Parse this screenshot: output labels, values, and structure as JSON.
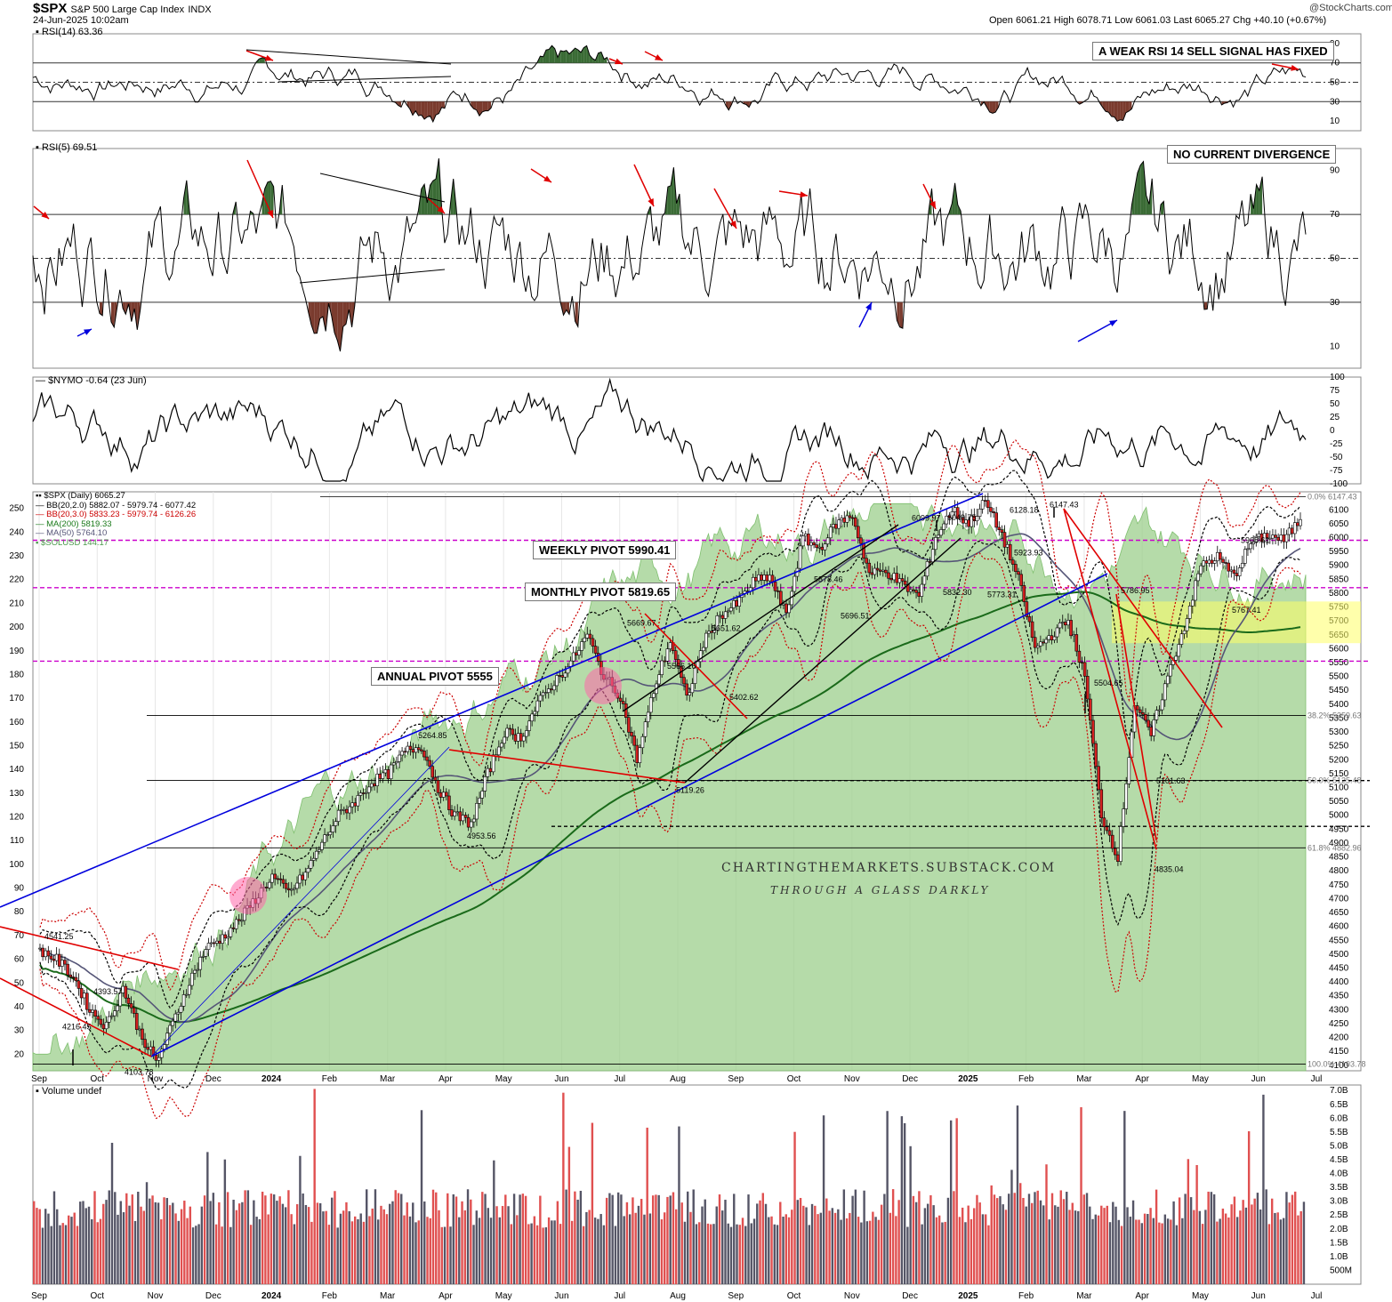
{
  "header": {
    "symbol": "$SPX",
    "name": "S&P 500 Large Cap Index",
    "exchange": "INDX",
    "timestamp": "24-Jun-2025 10:02am",
    "ohlc": "Open 6061.21  High 6078.71  Low 6061.03  Last 6065.27  Chg +40.10 (+0.67%)",
    "logo": "@StockCharts.com"
  },
  "chart_data": [
    {
      "type": "line",
      "panel": "rsi14",
      "legend": "RSI(14) 63.36",
      "y_ticks": [
        "90",
        "70",
        "50",
        "30",
        "10"
      ],
      "ylim": [
        0,
        100
      ],
      "reference_lines": [
        70,
        50,
        30
      ],
      "annotation": "A WEAK RSI 14 SELL SIGNAL HAS FIXED"
    },
    {
      "type": "line",
      "panel": "rsi5",
      "legend": "RSI(5) 69.51",
      "y_ticks": [
        "90",
        "70",
        "50",
        "30",
        "10"
      ],
      "ylim": [
        0,
        100
      ],
      "reference_lines": [
        70,
        50,
        30
      ],
      "annotation": "NO CURRENT DIVERGENCE"
    },
    {
      "type": "line",
      "panel": "nymo",
      "legend": "$NYMO -0.64 (23 Jun)",
      "y_ticks": [
        "100",
        "75",
        "50",
        "25",
        "0",
        "-25",
        "-50",
        "-75",
        "-100"
      ],
      "ylim": [
        -100,
        100
      ]
    },
    {
      "type": "line",
      "panel": "price",
      "legend": [
        {
          "text": "$SPX (Daily) 6065.27",
          "color": "#000000"
        },
        {
          "text": "BB(20,2.0) 5882.07 - 5979.74 - 6077.42",
          "color": "#000000"
        },
        {
          "text": "BB(20,3.0) 5833.23 - 5979.74 - 6126.26",
          "color": "#cc0000"
        },
        {
          "text": "MA(200) 5819.33",
          "color": "#1a7a1a"
        },
        {
          "text": "MA(50) 5764.10",
          "color": "#555577"
        },
        {
          "text": "$SOLUSD 144.17",
          "color": "#4a9a4a"
        }
      ],
      "x_ticks": [
        "Sep",
        "Oct",
        "Nov",
        "Dec",
        "2024",
        "Feb",
        "Mar",
        "Apr",
        "May",
        "Jun",
        "Jul",
        "Aug",
        "Sep",
        "Oct",
        "Nov",
        "Dec",
        "2025",
        "Feb",
        "Mar",
        "Apr",
        "May",
        "Jun",
        "Jul"
      ],
      "y_right_ticks": [
        "6100",
        "6050",
        "6000",
        "5950",
        "5900",
        "5850",
        "5800",
        "5750",
        "5700",
        "5650",
        "5600",
        "5550",
        "5500",
        "5450",
        "5400",
        "5350",
        "5300",
        "5250",
        "5200",
        "5150",
        "5100",
        "5050",
        "5000",
        "4950",
        "4900",
        "4850",
        "4800",
        "4750",
        "4700",
        "4650",
        "4600",
        "4550",
        "4500",
        "4450",
        "4400",
        "4350",
        "4300",
        "4250",
        "4200",
        "4150",
        "4100"
      ],
      "y_left_ticks": [
        "250",
        "240",
        "230",
        "220",
        "210",
        "200",
        "190",
        "180",
        "170",
        "160",
        "150",
        "140",
        "130",
        "120",
        "110",
        "100",
        "90",
        "80",
        "70",
        "60",
        "50",
        "40",
        "30",
        "20"
      ],
      "ylim": [
        4080,
        6165
      ],
      "fib_labels": [
        "0.0% 6147.43",
        "38.2% 5359.63",
        "50.0% 5125.48",
        "61.8% 4882.96",
        "100.0% 4103.78"
      ],
      "pivots": [
        {
          "label": "WEEKLY PIVOT 5990.41",
          "value": 5990.41
        },
        {
          "label": "MONTHLY PIVOT 5819.65",
          "value": 5819.65
        },
        {
          "label": "ANNUAL PIVOT 5555",
          "value": 5555
        }
      ],
      "price_labels": [
        {
          "text": "4541.25",
          "value": 4541.25
        },
        {
          "text": "4393.57",
          "value": 4393.57
        },
        {
          "text": "4216.45",
          "value": 4216.45
        },
        {
          "text": "4103.78",
          "value": 4103.78
        },
        {
          "text": "5264.85",
          "value": 5264.85
        },
        {
          "text": "4953.56",
          "value": 4953.56
        },
        {
          "text": "5669.67",
          "value": 5669.67
        },
        {
          "text": "5566.16",
          "value": 5566.16
        },
        {
          "text": "5651.62",
          "value": 5651.62
        },
        {
          "text": "5119.26",
          "value": 5119.26
        },
        {
          "text": "5402.62",
          "value": 5402.62
        },
        {
          "text": "5878.46",
          "value": 5878.46
        },
        {
          "text": "5696.51",
          "value": 5696.51
        },
        {
          "text": "6099.97",
          "value": 6099.97
        },
        {
          "text": "6049.75",
          "value": 6049.75
        },
        {
          "text": "5832.30",
          "value": 5832.3
        },
        {
          "text": "5773.31",
          "value": 5773.31
        },
        {
          "text": "6128.18",
          "value": 6128.18
        },
        {
          "text": "5923.93",
          "value": 5923.93
        },
        {
          "text": "6147.43",
          "value": 6147.43
        },
        {
          "text": "5786.95",
          "value": 5786.95
        },
        {
          "text": "5504.65",
          "value": 5504.65
        },
        {
          "text": "5101.63",
          "value": 5101.63
        },
        {
          "text": "4835.04",
          "value": 4835.04
        },
        {
          "text": "5968.61",
          "value": 5968.61
        },
        {
          "text": "5767.41",
          "value": 5767.41
        }
      ],
      "price_path": [
        [
          "Sep",
          4515
        ],
        [
          "Sep",
          4480
        ],
        [
          "Sep",
          4420
        ],
        [
          "Oct",
          4300
        ],
        [
          "Oct",
          4240
        ],
        [
          "Oct",
          4380
        ],
        [
          "Oct",
          4220
        ],
        [
          "Nov",
          4110
        ],
        [
          "Nov",
          4250
        ],
        [
          "Nov",
          4400
        ],
        [
          "Nov",
          4520
        ],
        [
          "Dec",
          4560
        ],
        [
          "Dec",
          4620
        ],
        [
          "Dec",
          4700
        ],
        [
          "Dec",
          4780
        ],
        [
          "2024",
          4720
        ],
        [
          "2024",
          4790
        ],
        [
          "Feb",
          4900
        ],
        [
          "Feb",
          5000
        ],
        [
          "Feb",
          5050
        ],
        [
          "Mar",
          5120
        ],
        [
          "Mar",
          5150
        ],
        [
          "Mar",
          5230
        ],
        [
          "Apr",
          5250
        ],
        [
          "Apr",
          5100
        ],
        [
          "Apr",
          5000
        ],
        [
          "May",
          4970
        ],
        [
          "May",
          5150
        ],
        [
          "May",
          5300
        ],
        [
          "Jun",
          5280
        ],
        [
          "Jun",
          5400
        ],
        [
          "Jun",
          5480
        ],
        [
          "Jul",
          5550
        ],
        [
          "Jul",
          5650
        ],
        [
          "Jul",
          5500
        ],
        [
          "Aug",
          5430
        ],
        [
          "Aug",
          5200
        ],
        [
          "Aug",
          5450
        ],
        [
          "Aug",
          5630
        ],
        [
          "Sep",
          5420
        ],
        [
          "Sep",
          5620
        ],
        [
          "Sep",
          5720
        ],
        [
          "Oct",
          5760
        ],
        [
          "Oct",
          5840
        ],
        [
          "Oct",
          5860
        ],
        [
          "Nov",
          5720
        ],
        [
          "Nov",
          6000
        ],
        [
          "Nov",
          5960
        ],
        [
          "Dec",
          6050
        ],
        [
          "Dec",
          6080
        ],
        [
          "Dec",
          5870
        ],
        [
          "2025",
          5880
        ],
        [
          "2025",
          5830
        ],
        [
          "2025",
          5790
        ],
        [
          "2025",
          6000
        ],
        [
          "Feb",
          6100
        ],
        [
          "Feb",
          6050
        ],
        [
          "Feb",
          6130
        ],
        [
          "Feb",
          6010
        ],
        [
          "Mar",
          5850
        ],
        [
          "Mar",
          5600
        ],
        [
          "Mar",
          5650
        ],
        [
          "Mar",
          5700
        ],
        [
          "Apr",
          5500
        ],
        [
          "Apr",
          5000
        ],
        [
          "Apr",
          4850
        ],
        [
          "Apr",
          5400
        ],
        [
          "Apr",
          5290
        ],
        [
          "May",
          5500
        ],
        [
          "May",
          5680
        ],
        [
          "May",
          5900
        ],
        [
          "May",
          5930
        ],
        [
          "Jun",
          5860
        ],
        [
          "Jun",
          5980
        ],
        [
          "Jun",
          6010
        ],
        [
          "Jun",
          5990
        ],
        [
          "Jun",
          6065
        ]
      ]
    },
    {
      "type": "bar",
      "panel": "volume",
      "legend": "Volume undef",
      "y_ticks": [
        "7.0B",
        "6.5B",
        "6.0B",
        "5.5B",
        "5.0B",
        "4.5B",
        "4.0B",
        "3.5B",
        "3.0B",
        "2.5B",
        "2.0B",
        "1.5B",
        "1.0B",
        "500M"
      ],
      "ylim": [
        0,
        7.2
      ],
      "x_ticks": [
        "Sep",
        "Oct",
        "Nov",
        "Dec",
        "2024",
        "Feb",
        "Mar",
        "Apr",
        "May",
        "Jun",
        "Jul",
        "Aug",
        "Sep",
        "Oct",
        "Nov",
        "Dec",
        "2025",
        "Feb",
        "Mar",
        "Apr",
        "May",
        "Jun",
        "Jul"
      ]
    }
  ],
  "watermark": {
    "line1": "CHARTINGTHEMARKETS.SUBSTACK.COM",
    "line2": "THROUGH A GLASS DARKLY"
  },
  "colors": {
    "overbought_fill": "#3a6b35",
    "oversold_fill": "#7a3b2e",
    "pivot_line": "#cc00cc",
    "channel_blue": "#0000dd",
    "trend_red": "#e00000",
    "ma200": "#1a6a1a",
    "ma50": "#555577",
    "sol_area": "#9ccf8c",
    "fill_zone": "#ffff66",
    "volume_up": "#555566",
    "volume_down": "#e05050"
  }
}
